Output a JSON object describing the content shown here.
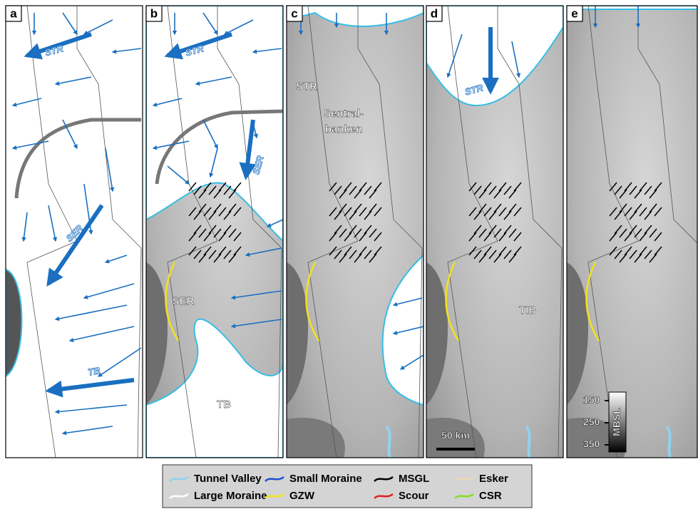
{
  "panels": [
    {
      "letter": "a",
      "labels": [
        "STR",
        "SER",
        "TB"
      ]
    },
    {
      "letter": "b",
      "labels": [
        "STR",
        "SER",
        "SER",
        "TB"
      ]
    },
    {
      "letter": "c",
      "labels": [
        "STR",
        "Sentral-",
        "banken"
      ]
    },
    {
      "letter": "d",
      "labels": [
        "STR",
        "TIB"
      ]
    },
    {
      "letter": "e",
      "labels": []
    }
  ],
  "scale_bar": "50 km",
  "depth_scale": {
    "title": "MBSL",
    "ticks": [
      "150",
      "250",
      "350"
    ]
  },
  "legend": [
    {
      "label": "Tunnel Valley",
      "color": "#8fd3f0"
    },
    {
      "label": "Small Moraine",
      "color": "#1f4fd1"
    },
    {
      "label": "MSGL",
      "color": "#000000"
    },
    {
      "label": "Esker",
      "color": "#ead9b5"
    },
    {
      "label": "Large Moraine",
      "color": "#ffffff"
    },
    {
      "label": "GZW",
      "color": "#f2e21c"
    },
    {
      "label": "Scour",
      "color": "#e02020"
    },
    {
      "label": "CSR",
      "color": "#86e021"
    }
  ]
}
